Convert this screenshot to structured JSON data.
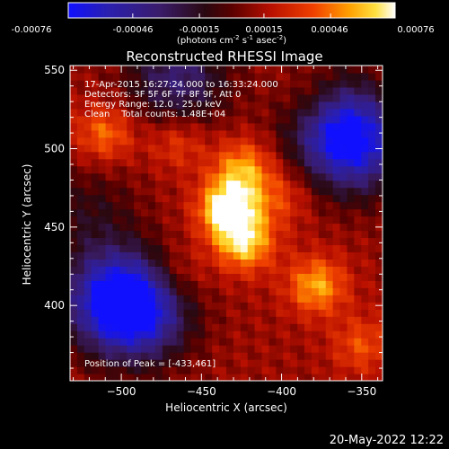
{
  "colorbar": {
    "ticks": [
      "-0.00076",
      "-0.00046",
      "-0.00015",
      "0.00015",
      "0.00046",
      "0.00076"
    ],
    "unit_label": "(photons cm",
    "unit_sup1": "-2",
    "unit_mid1": " s",
    "unit_sup2": "-1",
    "unit_mid2": " asec",
    "unit_sup3": "-2",
    "unit_end": ")"
  },
  "info": {
    "line1": "17-Apr-2015 16:27:24.000 to 16:33:24.000",
    "line2": "Detectors: 3F 5F 6F 7F 8F 9F, Att 0",
    "line3": "Energy Range: 12.0 - 25.0 keV",
    "line4": "Clean    Total counts: 1.48E+04",
    "peak": "Position of Peak = [-433,461]"
  },
  "footer": {
    "date": "20-May-2022 12:22"
  },
  "colors": {
    "background": "#000000",
    "text": "#ffffff"
  },
  "chart_data": {
    "type": "heatmap",
    "title": "Reconstructed RHESSI Image",
    "xlabel": "Heliocentric X (arcsec)",
    "ylabel": "Heliocentric Y (arcsec)",
    "xlim": [
      -532,
      -337
    ],
    "ylim": [
      352,
      553
    ],
    "x_ticks": [
      -500,
      -450,
      -400,
      -350
    ],
    "y_ticks": [
      400,
      450,
      500,
      550
    ],
    "x_tick_labels": [
      "−500",
      "−450",
      "−400",
      "−350"
    ],
    "y_tick_labels": [
      "400",
      "450",
      "500",
      "550"
    ],
    "colormap": "rainbow-hot (purple-blue to red to yellow to white)",
    "value_range": [
      -0.00076,
      0.00076
    ],
    "peak_position": [
      -433,
      461
    ],
    "features": [
      {
        "x": -433,
        "y": 462,
        "value": 0.00074
      },
      {
        "x": -423,
        "y": 440,
        "value": 0.00055
      },
      {
        "x": -424,
        "y": 488,
        "value": 0.00045
      },
      {
        "x": -378,
        "y": 413,
        "value": 0.00048
      },
      {
        "x": -510,
        "y": 510,
        "value": 0.00038
      },
      {
        "x": -350,
        "y": 375,
        "value": 0.0003
      },
      {
        "x": -465,
        "y": 505,
        "value": 0.00028
      },
      {
        "x": -465,
        "y": 420,
        "value": 0.00022
      },
      {
        "x": -400,
        "y": 470,
        "value": 0.00026
      },
      {
        "x": -380,
        "y": 530,
        "value": 0.0002
      },
      {
        "x": -505,
        "y": 405,
        "value": -0.0006
      },
      {
        "x": -488,
        "y": 395,
        "value": -0.0005
      },
      {
        "x": -365,
        "y": 515,
        "value": -0.00045
      },
      {
        "x": -352,
        "y": 500,
        "value": -0.00042
      },
      {
        "x": -465,
        "y": 545,
        "value": -0.00035
      },
      {
        "x": -520,
        "y": 460,
        "value": -0.0001
      }
    ]
  }
}
